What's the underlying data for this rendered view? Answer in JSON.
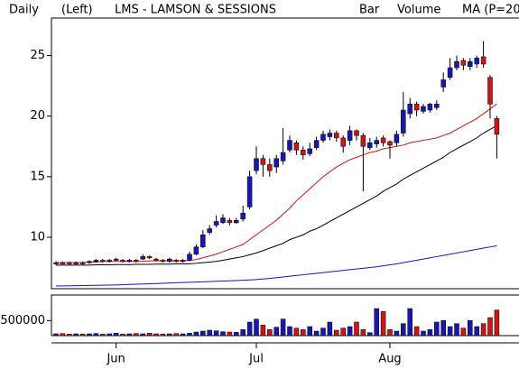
{
  "chart_data": {
    "type": "candlestick",
    "header": {
      "period": "Daily",
      "axis_side": "(Left)",
      "title": "LMS - LAMSON & SESSIONS",
      "style": "Bar",
      "volume_label": "Volume",
      "ma_label": "MA (P=20"
    },
    "header_colors": {
      "volume_label": "#22bb22",
      "ma_label": "#dd1111"
    },
    "categories": [
      null,
      null,
      null,
      null,
      null,
      null,
      null,
      null,
      null,
      "Jun",
      null,
      null,
      null,
      null,
      null,
      null,
      null,
      null,
      null,
      null,
      null,
      null,
      null,
      null,
      null,
      null,
      null,
      null,
      null,
      null,
      "Jul",
      null,
      null,
      null,
      null,
      null,
      null,
      null,
      null,
      null,
      null,
      null,
      null,
      null,
      null,
      null,
      null,
      null,
      null,
      null,
      "Aug",
      null,
      null,
      null,
      null,
      null,
      null,
      null,
      null,
      null,
      null,
      null,
      null,
      null,
      null,
      null,
      null
    ],
    "open": [
      7.8,
      7.9,
      7.9,
      7.8,
      7.9,
      7.9,
      8.0,
      8.1,
      8.0,
      8.1,
      8.1,
      8.0,
      8.1,
      8.2,
      8.4,
      8.2,
      8.1,
      8.0,
      8.1,
      8.0,
      8.1,
      8.6,
      9.2,
      10.4,
      11.0,
      11.2,
      11.4,
      11.2,
      11.5,
      12.5,
      15.5,
      16.5,
      16.0,
      15.8,
      16.3,
      17.2,
      17.8,
      17.2,
      16.9,
      17.4,
      18.0,
      18.3,
      18.6,
      18.2,
      18.0,
      18.8,
      18.4,
      17.4,
      17.7,
      18.2,
      17.9,
      17.8,
      18.6,
      20.2,
      21.0,
      20.4,
      20.5,
      20.7,
      22.4,
      23.2,
      24.0,
      24.6,
      24.1,
      24.3,
      24.9,
      23.2,
      19.8
    ],
    "high": [
      8.0,
      8.0,
      8.0,
      8.0,
      8.0,
      8.1,
      8.2,
      8.2,
      8.2,
      8.3,
      8.2,
      8.2,
      8.2,
      8.6,
      8.5,
      8.3,
      8.2,
      8.3,
      8.2,
      8.2,
      8.8,
      9.4,
      10.6,
      11.0,
      11.8,
      11.9,
      11.6,
      11.6,
      12.6,
      15.5,
      17.5,
      16.8,
      16.5,
      16.8,
      19.0,
      18.4,
      18.0,
      17.5,
      17.8,
      18.3,
      18.8,
      18.9,
      18.8,
      18.4,
      19.2,
      18.9,
      18.6,
      18.2,
      18.3,
      18.4,
      18.0,
      18.8,
      22.0,
      21.5,
      21.2,
      21.0,
      21.1,
      21.3,
      23.6,
      24.8,
      25.0,
      24.8,
      24.8,
      25.0,
      26.2,
      23.4,
      20.0
    ],
    "low": [
      7.7,
      7.7,
      7.7,
      7.7,
      7.7,
      7.8,
      7.9,
      7.9,
      7.9,
      8.0,
      7.9,
      7.9,
      7.9,
      8.1,
      8.2,
      8.0,
      7.9,
      7.9,
      7.9,
      7.9,
      8.0,
      8.5,
      9.1,
      10.2,
      10.8,
      11.1,
      11.0,
      11.1,
      11.3,
      12.3,
      15.2,
      15.0,
      15.0,
      15.3,
      16.0,
      17.0,
      16.8,
      16.4,
      16.7,
      17.2,
      17.8,
      18.0,
      17.9,
      17.0,
      17.6,
      18.0,
      13.8,
      17.2,
      17.4,
      17.5,
      16.5,
      17.5,
      18.3,
      19.8,
      20.0,
      20.2,
      20.3,
      20.5,
      22.0,
      23.0,
      23.8,
      23.8,
      23.8,
      24.0,
      24.0,
      19.8,
      16.5
    ],
    "close": [
      7.9,
      7.8,
      7.8,
      7.9,
      7.8,
      8.0,
      8.1,
      8.0,
      8.1,
      8.2,
      8.0,
      8.1,
      8.0,
      8.4,
      8.3,
      8.1,
      8.0,
      8.2,
      8.0,
      8.1,
      8.6,
      9.2,
      10.2,
      10.7,
      11.3,
      11.6,
      11.2,
      11.4,
      12.0,
      15.0,
      16.5,
      16.0,
      15.5,
      16.5,
      17.0,
      18.0,
      17.2,
      16.8,
      17.3,
      18.0,
      18.5,
      18.6,
      18.2,
      17.5,
      18.8,
      18.4,
      17.5,
      17.8,
      18.0,
      17.8,
      17.6,
      18.5,
      20.5,
      21.0,
      20.5,
      20.8,
      21.0,
      21.0,
      23.0,
      24.0,
      24.5,
      24.2,
      24.5,
      24.8,
      24.3,
      21.0,
      18.5
    ],
    "up_color": "#1818b0",
    "down_color": "#cc1515",
    "ylim": [
      5.75,
      28.1
    ],
    "yticks": [
      10,
      15,
      20,
      25
    ],
    "ma": [
      {
        "color": "#e01010",
        "values": [
          7.9,
          7.9,
          7.9,
          7.9,
          7.9,
          7.95,
          7.95,
          8.0,
          8.0,
          8.0,
          8.0,
          8.0,
          8.0,
          8.0,
          8.05,
          8.05,
          8.05,
          8.05,
          8.05,
          8.05,
          8.1,
          8.15,
          8.3,
          8.45,
          8.6,
          8.8,
          9.0,
          9.2,
          9.4,
          9.8,
          10.2,
          10.6,
          11.0,
          11.4,
          11.9,
          12.4,
          13.0,
          13.5,
          14.0,
          14.5,
          15.0,
          15.4,
          15.8,
          16.1,
          16.4,
          16.6,
          16.8,
          17.0,
          17.1,
          17.3,
          17.4,
          17.5,
          17.6,
          17.8,
          17.9,
          18.0,
          18.1,
          18.2,
          18.4,
          18.6,
          18.9,
          19.2,
          19.5,
          19.8,
          20.2,
          20.6,
          21.0
        ]
      },
      {
        "color": "#000000",
        "values": [
          7.7,
          7.7,
          7.7,
          7.7,
          7.7,
          7.7,
          7.72,
          7.72,
          7.72,
          7.74,
          7.74,
          7.74,
          7.76,
          7.76,
          7.76,
          7.78,
          7.78,
          7.78,
          7.8,
          7.8,
          7.8,
          7.85,
          7.9,
          7.95,
          8.0,
          8.1,
          8.2,
          8.3,
          8.4,
          8.55,
          8.7,
          8.9,
          9.1,
          9.3,
          9.5,
          9.8,
          10.0,
          10.2,
          10.5,
          10.7,
          11.0,
          11.3,
          11.6,
          11.9,
          12.2,
          12.5,
          12.8,
          13.1,
          13.4,
          13.8,
          14.1,
          14.4,
          14.8,
          15.1,
          15.4,
          15.7,
          16.0,
          16.3,
          16.6,
          17.0,
          17.3,
          17.6,
          17.9,
          18.2,
          18.6,
          18.9,
          19.2
        ]
      },
      {
        "color": "#1515c8",
        "values": [
          5.97,
          5.98,
          5.99,
          6.0,
          6.01,
          6.02,
          6.03,
          6.04,
          6.05,
          6.06,
          6.08,
          6.1,
          6.12,
          6.14,
          6.16,
          6.18,
          6.2,
          6.22,
          6.24,
          6.26,
          6.28,
          6.3,
          6.32,
          6.34,
          6.36,
          6.38,
          6.4,
          6.42,
          6.45,
          6.48,
          6.5,
          6.55,
          6.6,
          6.66,
          6.72,
          6.78,
          6.84,
          6.9,
          6.96,
          7.02,
          7.08,
          7.14,
          7.2,
          7.26,
          7.32,
          7.38,
          7.44,
          7.5,
          7.56,
          7.64,
          7.72,
          7.8,
          7.9,
          8.0,
          8.1,
          8.2,
          8.3,
          8.4,
          8.5,
          8.6,
          8.7,
          8.8,
          8.9,
          9.0,
          9.1,
          9.2,
          9.3
        ]
      }
    ],
    "volume": {
      "values": [
        60000,
        70000,
        50000,
        60000,
        50000,
        60000,
        70000,
        50000,
        60000,
        80000,
        50000,
        60000,
        70000,
        60000,
        80000,
        60000,
        50000,
        60000,
        70000,
        60000,
        80000,
        120000,
        150000,
        180000,
        160000,
        130000,
        120000,
        110000,
        200000,
        450000,
        550000,
        350000,
        200000,
        280000,
        550000,
        300000,
        250000,
        200000,
        300000,
        150000,
        250000,
        450000,
        180000,
        250000,
        300000,
        450000,
        200000,
        100000,
        900000,
        800000,
        200000,
        150000,
        400000,
        900000,
        300000,
        150000,
        200000,
        450000,
        500000,
        300000,
        400000,
        250000,
        500000,
        300000,
        400000,
        600000,
        850000
      ],
      "ylim": [
        0,
        1350000
      ],
      "yticks": [
        500000
      ]
    }
  }
}
